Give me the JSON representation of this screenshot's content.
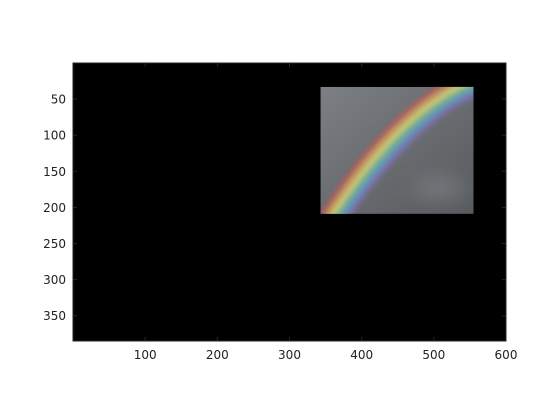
{
  "chart_data": {
    "type": "image",
    "title": "",
    "xlabel": "",
    "ylabel": "",
    "xlim": [
      0,
      600
    ],
    "ylim": [
      385,
      0
    ],
    "y_axis_inverted": true,
    "grid": false,
    "x_ticks": [
      100,
      200,
      300,
      400,
      500,
      600
    ],
    "x_tick_labels": [
      "100",
      "200",
      "300",
      "400",
      "500",
      "600"
    ],
    "y_ticks": [
      50,
      100,
      150,
      200,
      250,
      300,
      350
    ],
    "y_tick_labels": [
      "50",
      "100",
      "150",
      "200",
      "250",
      "300",
      "350"
    ],
    "background_color": "#000000",
    "image_content": "rainbow against a cloudy gray sky",
    "image_extent": {
      "x": [
        343,
        555
      ],
      "y": [
        33,
        209
      ]
    },
    "image_colors": {
      "sky_light": "#7c7f83",
      "sky_dark": "#575a5d",
      "rainbow": [
        "#c05a55",
        "#d9a45c",
        "#e3e27a",
        "#78c493",
        "#5fa0cf",
        "#7d6fb5"
      ]
    }
  }
}
